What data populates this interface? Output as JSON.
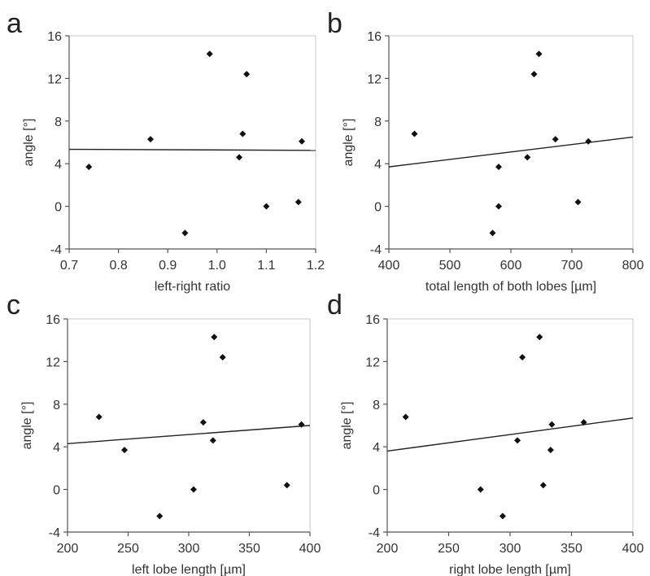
{
  "chart_data": [
    {
      "type": "scatter",
      "panel_label": "a",
      "xlabel": "left-right ratio",
      "ylabel": "angle [°]",
      "xlim": [
        0.7,
        1.2
      ],
      "ylim": [
        -4,
        16
      ],
      "xticks": [
        "0.7",
        "0.8",
        "0.9",
        "1.0",
        "1.1",
        "1.2"
      ],
      "yticks": [
        "-4",
        "0",
        "4",
        "8",
        "12",
        "16"
      ],
      "grid": false,
      "points": [
        {
          "x": 0.74,
          "y": 3.7
        },
        {
          "x": 0.865,
          "y": 6.3
        },
        {
          "x": 0.935,
          "y": -2.5
        },
        {
          "x": 0.985,
          "y": 14.3
        },
        {
          "x": 1.045,
          "y": 4.6
        },
        {
          "x": 1.052,
          "y": 6.8
        },
        {
          "x": 1.06,
          "y": 12.4
        },
        {
          "x": 1.1,
          "y": 0.0
        },
        {
          "x": 1.165,
          "y": 0.4
        },
        {
          "x": 1.172,
          "y": 6.1
        }
      ],
      "trendline": [
        {
          "x": 0.7,
          "y": 5.35
        },
        {
          "x": 1.2,
          "y": 5.25
        }
      ]
    },
    {
      "type": "scatter",
      "panel_label": "b",
      "xlabel": "total length of both lobes [µm]",
      "ylabel": "angle [°]",
      "xlim": [
        400,
        800
      ],
      "ylim": [
        -4,
        16
      ],
      "xticks": [
        "400",
        "500",
        "600",
        "700",
        "800"
      ],
      "yticks": [
        "-4",
        "0",
        "4",
        "8",
        "12",
        "16"
      ],
      "grid": false,
      "points": [
        {
          "x": 442,
          "y": 6.8
        },
        {
          "x": 570,
          "y": -2.5
        },
        {
          "x": 580,
          "y": 3.7
        },
        {
          "x": 580,
          "y": 0.0
        },
        {
          "x": 627,
          "y": 4.6
        },
        {
          "x": 638,
          "y": 12.4
        },
        {
          "x": 646,
          "y": 14.3
        },
        {
          "x": 673,
          "y": 6.3
        },
        {
          "x": 710,
          "y": 0.4
        },
        {
          "x": 727,
          "y": 6.1
        }
      ],
      "trendline": [
        {
          "x": 400,
          "y": 3.7
        },
        {
          "x": 800,
          "y": 6.5
        }
      ]
    },
    {
      "type": "scatter",
      "panel_label": "c",
      "xlabel": "left lobe length [µm]",
      "ylabel": "angle [°]",
      "xlim": [
        200,
        400
      ],
      "ylim": [
        -4,
        16
      ],
      "xticks": [
        "200",
        "250",
        "300",
        "350",
        "400"
      ],
      "yticks": [
        "-4",
        "0",
        "4",
        "8",
        "12",
        "16"
      ],
      "grid": false,
      "points": [
        {
          "x": 226,
          "y": 6.8
        },
        {
          "x": 247,
          "y": 3.7
        },
        {
          "x": 276,
          "y": -2.5
        },
        {
          "x": 304,
          "y": 0.0
        },
        {
          "x": 312,
          "y": 6.3
        },
        {
          "x": 320,
          "y": 4.6
        },
        {
          "x": 321,
          "y": 14.3
        },
        {
          "x": 328,
          "y": 12.4
        },
        {
          "x": 381,
          "y": 0.4
        },
        {
          "x": 393,
          "y": 6.1
        }
      ],
      "trendline": [
        {
          "x": 200,
          "y": 4.3
        },
        {
          "x": 400,
          "y": 6.0
        }
      ]
    },
    {
      "type": "scatter",
      "panel_label": "d",
      "xlabel": "right lobe length [µm]",
      "ylabel": "angle [°]",
      "xlim": [
        200,
        400
      ],
      "ylim": [
        -4,
        16
      ],
      "xticks": [
        "200",
        "250",
        "300",
        "350",
        "400"
      ],
      "yticks": [
        "-4",
        "0",
        "4",
        "8",
        "12",
        "16"
      ],
      "grid": false,
      "points": [
        {
          "x": 215,
          "y": 6.8
        },
        {
          "x": 276,
          "y": 0.0
        },
        {
          "x": 294,
          "y": -2.5
        },
        {
          "x": 306,
          "y": 4.6
        },
        {
          "x": 310,
          "y": 12.4
        },
        {
          "x": 324,
          "y": 14.3
        },
        {
          "x": 327,
          "y": 0.4
        },
        {
          "x": 333,
          "y": 3.7
        },
        {
          "x": 334,
          "y": 6.1
        },
        {
          "x": 360,
          "y": 6.3
        }
      ],
      "trendline": [
        {
          "x": 200,
          "y": 3.6
        },
        {
          "x": 400,
          "y": 6.7
        }
      ]
    }
  ]
}
